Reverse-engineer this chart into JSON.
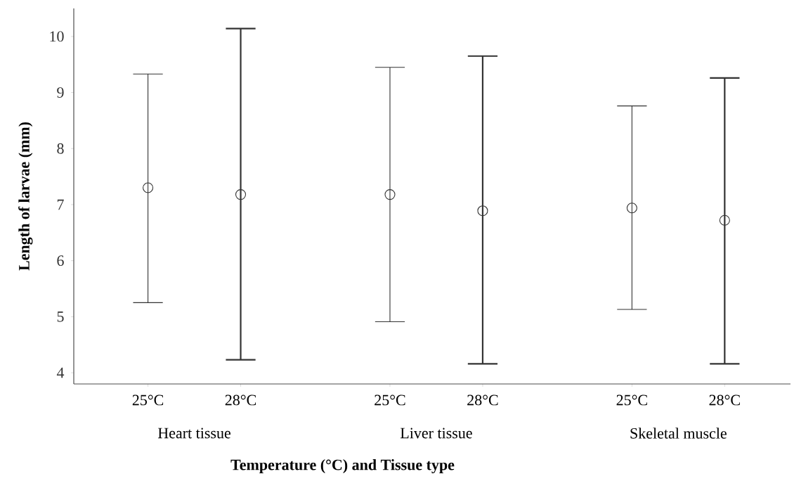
{
  "chart_data": {
    "type": "scatter",
    "xlabel": "Temperature (°C) and Tissue type",
    "ylabel": "Length of larvae (mm)",
    "categories": [
      "25°C",
      "28°C",
      "25°C",
      "28°C",
      "25°C",
      "28°C"
    ],
    "annotations": [
      "Heart tissue",
      "Liver tissue",
      "Skeletal muscle"
    ],
    "series": [
      {
        "color": "#333333",
        "values": [
          7.3,
          7.18,
          7.18,
          6.89,
          6.94,
          6.72
        ],
        "errors": [
          [
            5.25,
            9.33
          ],
          [
            4.23,
            10.14
          ],
          [
            4.91,
            9.45
          ],
          [
            4.16,
            9.65
          ],
          [
            5.13,
            8.76
          ],
          [
            4.16,
            9.26
          ]
        ]
      }
    ],
    "ylim": [
      3.8,
      10.5
    ],
    "yticks": [
      4,
      5,
      6,
      7,
      8,
      9,
      10
    ],
    "marker": "circle",
    "grid": false
  }
}
